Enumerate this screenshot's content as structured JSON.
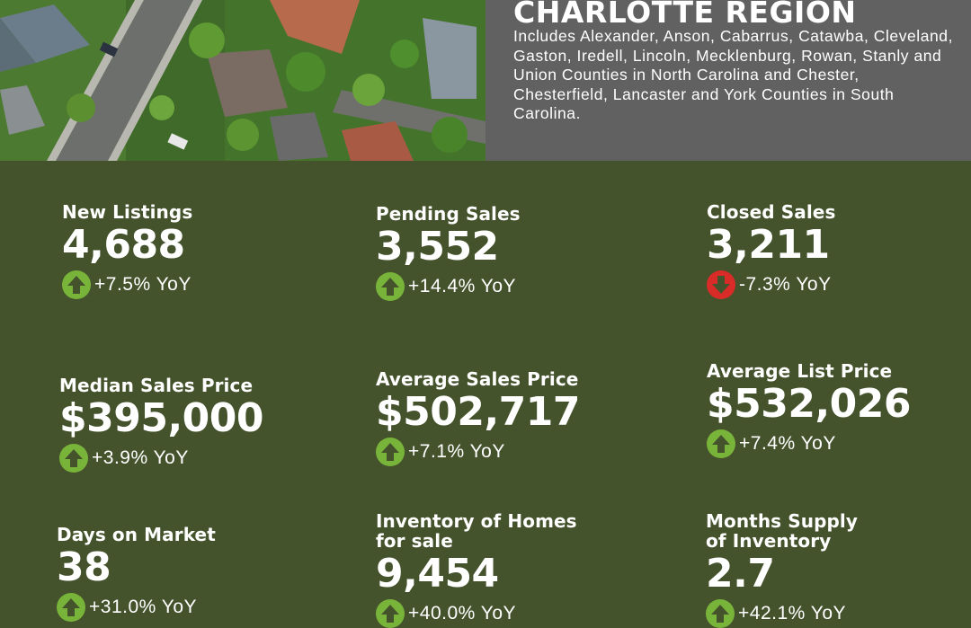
{
  "region": {
    "title": "CHARLOTTE REGION",
    "description": "Includes Alexander, Anson, Cabarrus, Catawba, Cleveland, Gaston, Iredell, Lincoln, Mecklenburg, Rowan, Stanly and Union Counties in North Carolina and Chester, Chesterfield, Lancaster and York Counties in South Carolina."
  },
  "colors": {
    "background": "#45532d",
    "region_panel": "#616161",
    "up": "#79b43a",
    "down": "#d92b27"
  },
  "stats": [
    {
      "label": "New Listings",
      "value": "4,688",
      "change": "+7.5% YoY",
      "direction": "up",
      "icon": "arrow-up-icon"
    },
    {
      "label": "Pending Sales",
      "value": "3,552",
      "change": "+14.4% YoY",
      "direction": "up",
      "icon": "arrow-up-icon"
    },
    {
      "label": "Closed Sales",
      "value": "3,211",
      "change": "-7.3% YoY",
      "direction": "down",
      "icon": "arrow-down-icon"
    },
    {
      "label": "Median Sales Price",
      "value": "$395,000",
      "change": "+3.9% YoY",
      "direction": "up",
      "icon": "arrow-up-icon"
    },
    {
      "label": "Average Sales Price",
      "value": "$502,717",
      "change": "+7.1% YoY",
      "direction": "up",
      "icon": "arrow-up-icon"
    },
    {
      "label": "Average List Price",
      "value": "$532,026",
      "change": "+7.4% YoY",
      "direction": "up",
      "icon": "arrow-up-icon"
    },
    {
      "label": "Days on Market",
      "value": "38",
      "change": "+31.0% YoY",
      "direction": "up",
      "icon": "arrow-up-icon"
    },
    {
      "label_lines": [
        "Inventory of Homes",
        "for sale"
      ],
      "value": "9,454",
      "change": "+40.0% YoY",
      "direction": "up",
      "icon": "arrow-up-icon"
    },
    {
      "label_lines": [
        "Months Supply",
        "of Inventory"
      ],
      "value": "2.7",
      "change": "+42.1% YoY",
      "direction": "up",
      "icon": "arrow-up-icon"
    }
  ]
}
